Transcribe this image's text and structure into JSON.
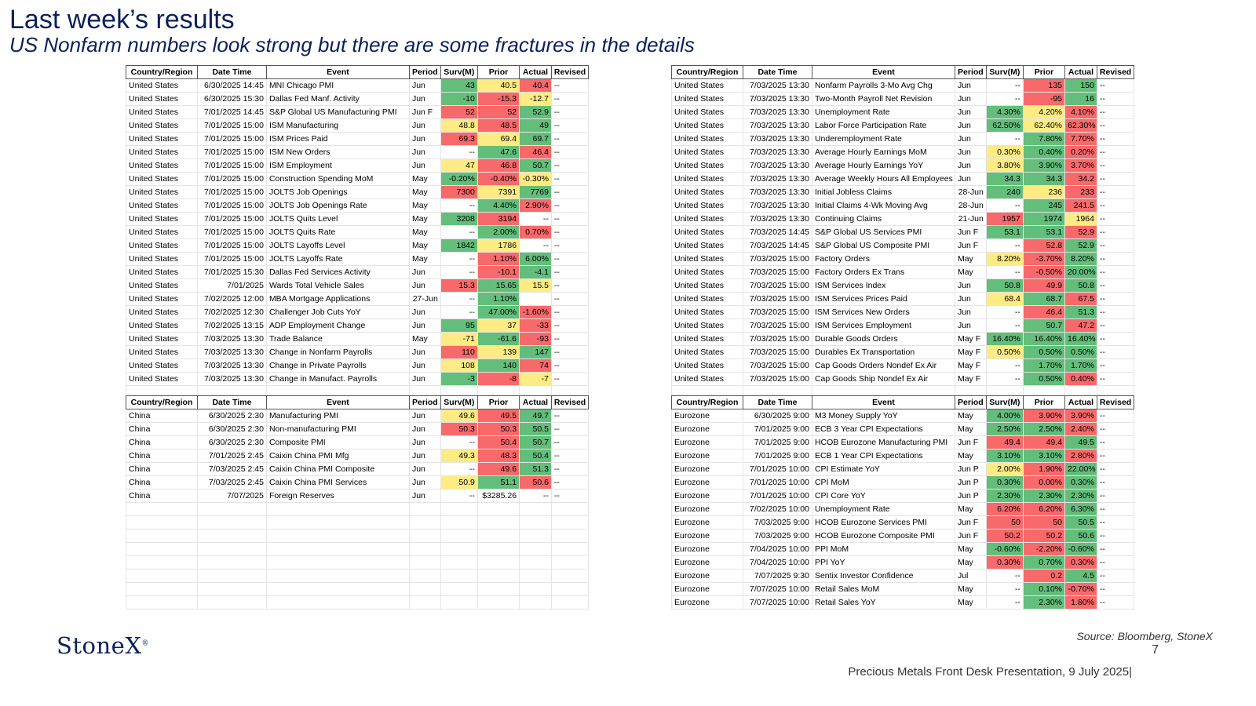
{
  "header": {
    "title": "Last week’s results",
    "subtitle": "US Nonfarm numbers look strong but there are some fractures in the details"
  },
  "columns": [
    "Country/Region",
    "Date Time",
    "Event",
    "Period",
    "Surv(M)",
    "Prior",
    "Actual",
    "Revised"
  ],
  "colors": {
    "green": "#63be7b",
    "yellow": "#ffeb84",
    "red": "#f8696b"
  },
  "tables": [
    {
      "rows": [
        [
          "United States",
          "6/30/2025 14:45",
          "MNI Chicago PMI",
          "Jun",
          "43",
          "40.5",
          "40.4",
          "--"
        ],
        [
          "United States",
          "6/30/2025 15:30",
          "Dallas Fed Manf. Activity",
          "Jun",
          "-10",
          "-15.3",
          "-12.7",
          "--"
        ],
        [
          "United States",
          "7/01/2025 14:45",
          "S&P Global US Manufacturing PMI",
          "Jun F",
          "52",
          "52",
          "52.9",
          "--"
        ],
        [
          "United States",
          "7/01/2025 15:00",
          "ISM Manufacturing",
          "Jun",
          "48.8",
          "48.5",
          "49",
          "--"
        ],
        [
          "United States",
          "7/01/2025 15:00",
          "ISM Prices Paid",
          "Jun",
          "69.3",
          "69.4",
          "69.7",
          "--"
        ],
        [
          "United States",
          "7/01/2025 15:00",
          "ISM New Orders",
          "Jun",
          "--",
          "47.6",
          "46.4",
          "--"
        ],
        [
          "United States",
          "7/01/2025 15:00",
          "ISM Employment",
          "Jun",
          "47",
          "46.8",
          "50.7",
          "--"
        ],
        [
          "United States",
          "7/01/2025 15:00",
          "Construction Spending MoM",
          "May",
          "-0.20%",
          "-0.40%",
          "-0.30%",
          "--"
        ],
        [
          "United States",
          "7/01/2025 15:00",
          "JOLTS Job Openings",
          "May",
          "7300",
          "7391",
          "7769",
          "--"
        ],
        [
          "United States",
          "7/01/2025 15:00",
          "JOLTS Job Openings Rate",
          "May",
          "--",
          "4.40%",
          "2.90%",
          "--"
        ],
        [
          "United States",
          "7/01/2025 15:00",
          "JOLTS Quits Level",
          "May",
          "3208",
          "3194",
          "--",
          "--"
        ],
        [
          "United States",
          "7/01/2025 15:00",
          "JOLTS Quits Rate",
          "May",
          "--",
          "2.00%",
          "0.70%",
          "--"
        ],
        [
          "United States",
          "7/01/2025 15:00",
          "JOLTS Layoffs Level",
          "May",
          "1842",
          "1786",
          "--",
          "--"
        ],
        [
          "United States",
          "7/01/2025 15:00",
          "JOLTS Layoffs Rate",
          "May",
          "--",
          "1.10%",
          "6.00%",
          "--"
        ],
        [
          "United States",
          "7/01/2025 15:30",
          "Dallas Fed Services Activity",
          "Jun",
          "--",
          "-10.1",
          "-4.1",
          "--"
        ],
        [
          "United States",
          "7/01/2025",
          "Wards Total Vehicle Sales",
          "Jun",
          "15.3",
          "15.65",
          "15.5",
          "--"
        ],
        [
          "United States",
          "7/02/2025 12:00",
          "MBA Mortgage Applications",
          "27-Jun",
          "--",
          "1.10%",
          "",
          "--"
        ],
        [
          "United States",
          "7/02/2025 12:30",
          "Challenger Job Cuts YoY",
          "Jun",
          "--",
          "47.00%",
          "-1.60%",
          "--"
        ],
        [
          "United States",
          "7/02/2025 13:15",
          "ADP Employment Change",
          "Jun",
          "95",
          "37",
          "-33",
          "--"
        ],
        [
          "United States",
          "7/03/2025 13:30",
          "Trade Balance",
          "May",
          "-71",
          "-61.6",
          "-93",
          "--"
        ],
        [
          "United States",
          "7/03/2025 13:30",
          "Change in Nonfarm Payrolls",
          "Jun",
          "110",
          "139",
          "147",
          "--"
        ],
        [
          "United States",
          "7/03/2025 13:30",
          "Change in Private Payrolls",
          "Jun",
          "108",
          "140",
          "74",
          "--"
        ],
        [
          "United States",
          "7/03/2025 13:30",
          "Change in Manufact. Payrolls",
          "Jun",
          "-3",
          "-8",
          "-7",
          "--"
        ]
      ],
      "colors": [
        [
          "g",
          "y",
          "r"
        ],
        [
          "g",
          "r",
          "y"
        ],
        [
          "r",
          "r",
          "g"
        ],
        [
          "y",
          "r",
          "g"
        ],
        [
          "r",
          "y",
          "g"
        ],
        [
          "",
          "g",
          "r"
        ],
        [
          "y",
          "r",
          "g"
        ],
        [
          "g",
          "r",
          "y"
        ],
        [
          "r",
          "y",
          "g"
        ],
        [
          "",
          "g",
          "r"
        ],
        [
          "g",
          "r",
          ""
        ],
        [
          "",
          "g",
          "r"
        ],
        [
          "g",
          "y",
          ""
        ],
        [
          "",
          "r",
          "g"
        ],
        [
          "",
          "r",
          "g"
        ],
        [
          "r",
          "g",
          "y"
        ],
        [
          "",
          "g",
          ""
        ],
        [
          "",
          "g",
          "r"
        ],
        [
          "g",
          "y",
          "r"
        ],
        [
          "y",
          "g",
          "r"
        ],
        [
          "r",
          "y",
          "g"
        ],
        [
          "y",
          "g",
          "r"
        ],
        [
          "g",
          "r",
          "y"
        ]
      ],
      "extra_blank_rows": 1
    },
    {
      "rows": [
        [
          "United States",
          "7/03/2025 13:30",
          "Nonfarm Payrolls 3-Mo Avg Chg",
          "Jun",
          "--",
          "135",
          "150",
          "--"
        ],
        [
          "United States",
          "7/03/2025 13:30",
          "Two-Month Payroll Net Revision",
          "Jun",
          "--",
          "-95",
          "16",
          "--"
        ],
        [
          "United States",
          "7/03/2025 13:30",
          "Unemployment Rate",
          "Jun",
          "4.30%",
          "4.20%",
          "4.10%",
          "--"
        ],
        [
          "United States",
          "7/03/2025 13:30",
          "Labor Force Participation Rate",
          "Jun",
          "62.50%",
          "62.40%",
          "62.30%",
          "--"
        ],
        [
          "United States",
          "7/03/2025 13:30",
          "Underemployment Rate",
          "Jun",
          "--",
          "7.80%",
          "7.70%",
          "--"
        ],
        [
          "United States",
          "7/03/2025 13:30",
          "Average Hourly Earnings MoM",
          "Jun",
          "0.30%",
          "0.40%",
          "0.20%",
          "--"
        ],
        [
          "United States",
          "7/03/2025 13:30",
          "Average Hourly Earnings YoY",
          "Jun",
          "3.80%",
          "3.90%",
          "3.70%",
          "--"
        ],
        [
          "United States",
          "7/03/2025 13:30",
          "Average Weekly Hours All Employees",
          "Jun",
          "34.3",
          "34.3",
          "34.2",
          "--"
        ],
        [
          "United States",
          "7/03/2025 13:30",
          "Initial Jobless Claims",
          "28-Jun",
          "240",
          "236",
          "233",
          "--"
        ],
        [
          "United States",
          "7/03/2025 13:30",
          "Initial Claims 4-Wk Moving Avg",
          "28-Jun",
          "--",
          "245",
          "241.5",
          "--"
        ],
        [
          "United States",
          "7/03/2025 13:30",
          "Continuing Claims",
          "21-Jun",
          "1957",
          "1974",
          "1964",
          "--"
        ],
        [
          "United States",
          "7/03/2025 14:45",
          "S&P Global US Services PMI",
          "Jun F",
          "53.1",
          "53.1",
          "52.9",
          "--"
        ],
        [
          "United States",
          "7/03/2025 14:45",
          "S&P Global US Composite PMI",
          "Jun F",
          "--",
          "52.8",
          "52.9",
          "--"
        ],
        [
          "United States",
          "7/03/2025 15:00",
          "Factory Orders",
          "May",
          "8.20%",
          "-3.70%",
          "8.20%",
          "--"
        ],
        [
          "United States",
          "7/03/2025 15:00",
          "Factory Orders Ex Trans",
          "May",
          "--",
          "-0.50%",
          "20.00%",
          "--"
        ],
        [
          "United States",
          "7/03/2025 15:00",
          "ISM Services Index",
          "Jun",
          "50.8",
          "49.9",
          "50.8",
          "--"
        ],
        [
          "United States",
          "7/03/2025 15:00",
          "ISM Services Prices Paid",
          "Jun",
          "68.4",
          "68.7",
          "67.5",
          "--"
        ],
        [
          "United States",
          "7/03/2025 15:00",
          "ISM Services New Orders",
          "Jun",
          "--",
          "46.4",
          "51.3",
          "--"
        ],
        [
          "United States",
          "7/03/2025 15:00",
          "ISM Services Employment",
          "Jun",
          "--",
          "50.7",
          "47.2",
          "--"
        ],
        [
          "United States",
          "7/03/2025 15:00",
          "Durable Goods Orders",
          "May F",
          "16.40%",
          "16.40%",
          "16.40%",
          "--"
        ],
        [
          "United States",
          "7/03/2025 15:00",
          "Durables Ex Transportation",
          "May F",
          "0.50%",
          "0.50%",
          "0.50%",
          "--"
        ],
        [
          "United States",
          "7/03/2025 15:00",
          "Cap Goods Orders Nondef Ex Air",
          "May F",
          "--",
          "1.70%",
          "1.70%",
          "--"
        ],
        [
          "United States",
          "7/03/2025 15:00",
          "Cap Goods Ship Nondef Ex Air",
          "May F",
          "--",
          "0.50%",
          "0.40%",
          "--"
        ]
      ],
      "colors": [
        [
          "",
          "r",
          "g"
        ],
        [
          "",
          "r",
          "g"
        ],
        [
          "g",
          "y",
          "r"
        ],
        [
          "g",
          "y",
          "r"
        ],
        [
          "",
          "g",
          "r"
        ],
        [
          "y",
          "g",
          "r"
        ],
        [
          "y",
          "g",
          "r"
        ],
        [
          "g",
          "g",
          "r"
        ],
        [
          "g",
          "y",
          "r"
        ],
        [
          "",
          "g",
          "r"
        ],
        [
          "r",
          "g",
          "y"
        ],
        [
          "g",
          "g",
          "r"
        ],
        [
          "",
          "r",
          "g"
        ],
        [
          "y",
          "r",
          "g"
        ],
        [
          "",
          "r",
          "g"
        ],
        [
          "g",
          "r",
          "g"
        ],
        [
          "y",
          "g",
          "r"
        ],
        [
          "",
          "r",
          "g"
        ],
        [
          "",
          "g",
          "r"
        ],
        [
          "g",
          "g",
          "g"
        ],
        [
          "y",
          "g",
          "g"
        ],
        [
          "",
          "g",
          "g"
        ],
        [
          "",
          "g",
          "r"
        ]
      ],
      "extra_blank_rows": 1
    },
    {
      "rows": [
        [
          "China",
          "6/30/2025 2:30",
          "Manufacturing PMI",
          "Jun",
          "49.6",
          "49.5",
          "49.7",
          "--"
        ],
        [
          "China",
          "6/30/2025 2:30",
          "Non-manufacturing PMI",
          "Jun",
          "50.3",
          "50.3",
          "50.5",
          "--"
        ],
        [
          "China",
          "6/30/2025 2:30",
          "Composite PMI",
          "Jun",
          "--",
          "50.4",
          "50.7",
          "--"
        ],
        [
          "China",
          "7/01/2025 2:45",
          "Caixin China PMI Mfg",
          "Jun",
          "49.3",
          "48.3",
          "50.4",
          "--"
        ],
        [
          "China",
          "7/03/2025 2:45",
          "Caixin China PMI Composite",
          "Jun",
          "--",
          "49.6",
          "51.3",
          "--"
        ],
        [
          "China",
          "7/03/2025 2:45",
          "Caixin China PMI Services",
          "Jun",
          "50.9",
          "51.1",
          "50.6",
          "--"
        ],
        [
          "China",
          "7/07/2025",
          "Foreign Reserves",
          "Jun",
          "--",
          "$3285.26",
          "--",
          "--"
        ]
      ],
      "colors": [
        [
          "y",
          "r",
          "g"
        ],
        [
          "r",
          "r",
          "g"
        ],
        [
          "",
          "r",
          "g"
        ],
        [
          "y",
          "r",
          "g"
        ],
        [
          "",
          "r",
          "g"
        ],
        [
          "y",
          "g",
          "r"
        ],
        [
          "",
          "",
          ""
        ]
      ],
      "extra_blank_rows": 8
    },
    {
      "rows": [
        [
          "Eurozone",
          "6/30/2025 9:00",
          "M3 Money Supply YoY",
          "May",
          "4.00%",
          "3.90%",
          "3.90%",
          "--"
        ],
        [
          "Eurozone",
          "7/01/2025 9:00",
          "ECB 3 Year CPI Expectations",
          "May",
          "2.50%",
          "2.50%",
          "2.40%",
          "--"
        ],
        [
          "Eurozone",
          "7/01/2025 9:00",
          "HCOB Eurozone Manufacturing PMI",
          "Jun F",
          "49.4",
          "49.4",
          "49.5",
          "--"
        ],
        [
          "Eurozone",
          "7/01/2025 9:00",
          "ECB 1 Year CPI Expectations",
          "May",
          "3.10%",
          "3.10%",
          "2.80%",
          "--"
        ],
        [
          "Eurozone",
          "7/01/2025 10:00",
          "CPI Estimate YoY",
          "Jun P",
          "2.00%",
          "1.90%",
          "22.00%",
          "--"
        ],
        [
          "Eurozone",
          "7/01/2025 10:00",
          "CPI MoM",
          "Jun P",
          "0.30%",
          "0.00%",
          "0.30%",
          "--"
        ],
        [
          "Eurozone",
          "7/01/2025 10:00",
          "CPI Core YoY",
          "Jun P",
          "2.30%",
          "2.30%",
          "2.30%",
          "--"
        ],
        [
          "Eurozone",
          "7/02/2025 10:00",
          "Unemployment Rate",
          "May",
          "6.20%",
          "6.20%",
          "6.30%",
          "--"
        ],
        [
          "Eurozone",
          "7/03/2025 9:00",
          "HCOB Eurozone Services PMI",
          "Jun F",
          "50",
          "50",
          "50.5",
          "--"
        ],
        [
          "Eurozone",
          "7/03/2025 9:00",
          "HCOB Eurozone Composite PMI",
          "Jun F",
          "50.2",
          "50.2",
          "50.6",
          "--"
        ],
        [
          "Eurozone",
          "7/04/2025 10:00",
          "PPI MoM",
          "May",
          "-0.60%",
          "-2.20%",
          "-0.60%",
          "--"
        ],
        [
          "Eurozone",
          "7/04/2025 10:00",
          "PPI YoY",
          "May",
          "0.30%",
          "0.70%",
          "0.30%",
          "--"
        ],
        [
          "Eurozone",
          "7/07/2025 9:30",
          "Sentix Investor Confidence",
          "Jul",
          "--",
          "0.2",
          "4.5",
          "--"
        ],
        [
          "Eurozone",
          "7/07/2025 10:00",
          "Retail Sales MoM",
          "May",
          "--",
          "0.10%",
          "-0.70%",
          "--"
        ],
        [
          "Eurozone",
          "7/07/2025 10:00",
          "Retail Sales YoY",
          "May",
          "--",
          "2.30%",
          "1.80%",
          "--"
        ]
      ],
      "colors": [
        [
          "g",
          "r",
          "r"
        ],
        [
          "g",
          "g",
          "r"
        ],
        [
          "r",
          "r",
          "g"
        ],
        [
          "g",
          "g",
          "r"
        ],
        [
          "y",
          "r",
          "g"
        ],
        [
          "g",
          "r",
          "g"
        ],
        [
          "g",
          "g",
          "g"
        ],
        [
          "r",
          "r",
          "g"
        ],
        [
          "r",
          "r",
          "g"
        ],
        [
          "r",
          "r",
          "g"
        ],
        [
          "g",
          "r",
          "g"
        ],
        [
          "r",
          "g",
          "r"
        ],
        [
          "",
          "r",
          "g"
        ],
        [
          "",
          "g",
          "r"
        ],
        [
          "",
          "g",
          "r"
        ]
      ],
      "extra_blank_rows": 0
    }
  ],
  "branding": {
    "logo": "StoneX",
    "logo_mark": "®"
  },
  "footer": {
    "source": "Source: Bloomberg, StoneX",
    "page_number": "7",
    "presentation": "Precious Metals Front Desk Presentation, 9 July 2025|"
  }
}
